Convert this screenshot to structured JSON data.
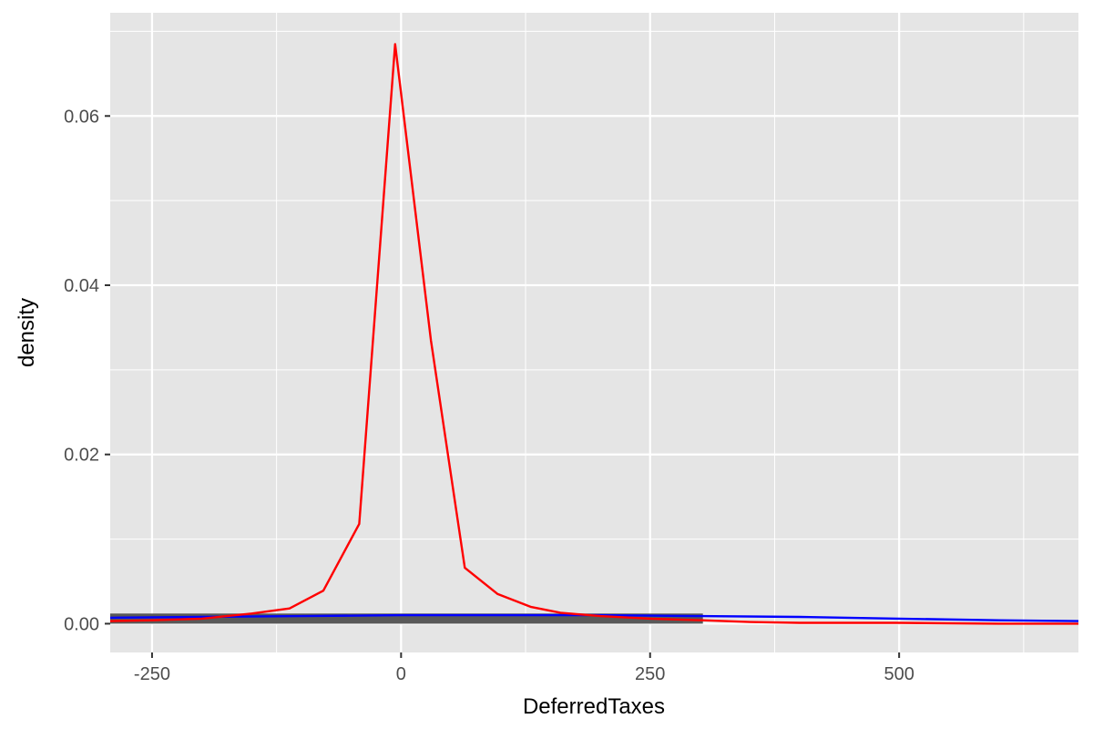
{
  "chart_data": {
    "type": "line",
    "title": "",
    "xlabel": "DeferredTaxes",
    "ylabel": "density",
    "xlim": [
      -292,
      680
    ],
    "ylim": [
      -0.0034,
      0.0722
    ],
    "x_ticks": [
      -250,
      0,
      250,
      500
    ],
    "x_tick_labels": [
      "-250",
      "0",
      "250",
      "500"
    ],
    "y_ticks": [
      0.0,
      0.02,
      0.04,
      0.06
    ],
    "y_tick_labels": [
      "0.00",
      "0.02",
      "0.04",
      "0.06"
    ],
    "grid": true,
    "legend": "none",
    "colors": {
      "panel": "#e5e5e5",
      "grid": "#ffffff",
      "histogram_bar": "#595959",
      "red_series": "#ff0000",
      "blue_series": "#0000ff"
    },
    "series": [
      {
        "kind": "histogram-bar",
        "color": "#595959",
        "xmin": -292,
        "xmax": 303,
        "density": 0.0012
      },
      {
        "kind": "line",
        "color": "#0000ff",
        "x": [
          -292,
          -200,
          -100,
          0,
          100,
          200,
          300,
          400,
          500,
          600,
          680
        ],
        "y": [
          0.0007,
          0.0008,
          0.0009,
          0.001,
          0.001,
          0.001,
          0.0009,
          0.0008,
          0.0006,
          0.0004,
          0.0003
        ]
      },
      {
        "kind": "line",
        "color": "#ff0000",
        "x": [
          -292,
          -250,
          -200,
          -150,
          -112,
          -78,
          -42,
          -6,
          30,
          64,
          97,
          130,
          160,
          200,
          250,
          303,
          350,
          400,
          500,
          600,
          680
        ],
        "y": [
          0.0003,
          0.0004,
          0.0006,
          0.0012,
          0.0018,
          0.0039,
          0.0118,
          0.0685,
          0.0335,
          0.0066,
          0.0035,
          0.002,
          0.0013,
          0.0009,
          0.0006,
          0.0004,
          0.0002,
          0.0001,
          0.0001,
          0.0,
          0.0
        ]
      }
    ]
  }
}
